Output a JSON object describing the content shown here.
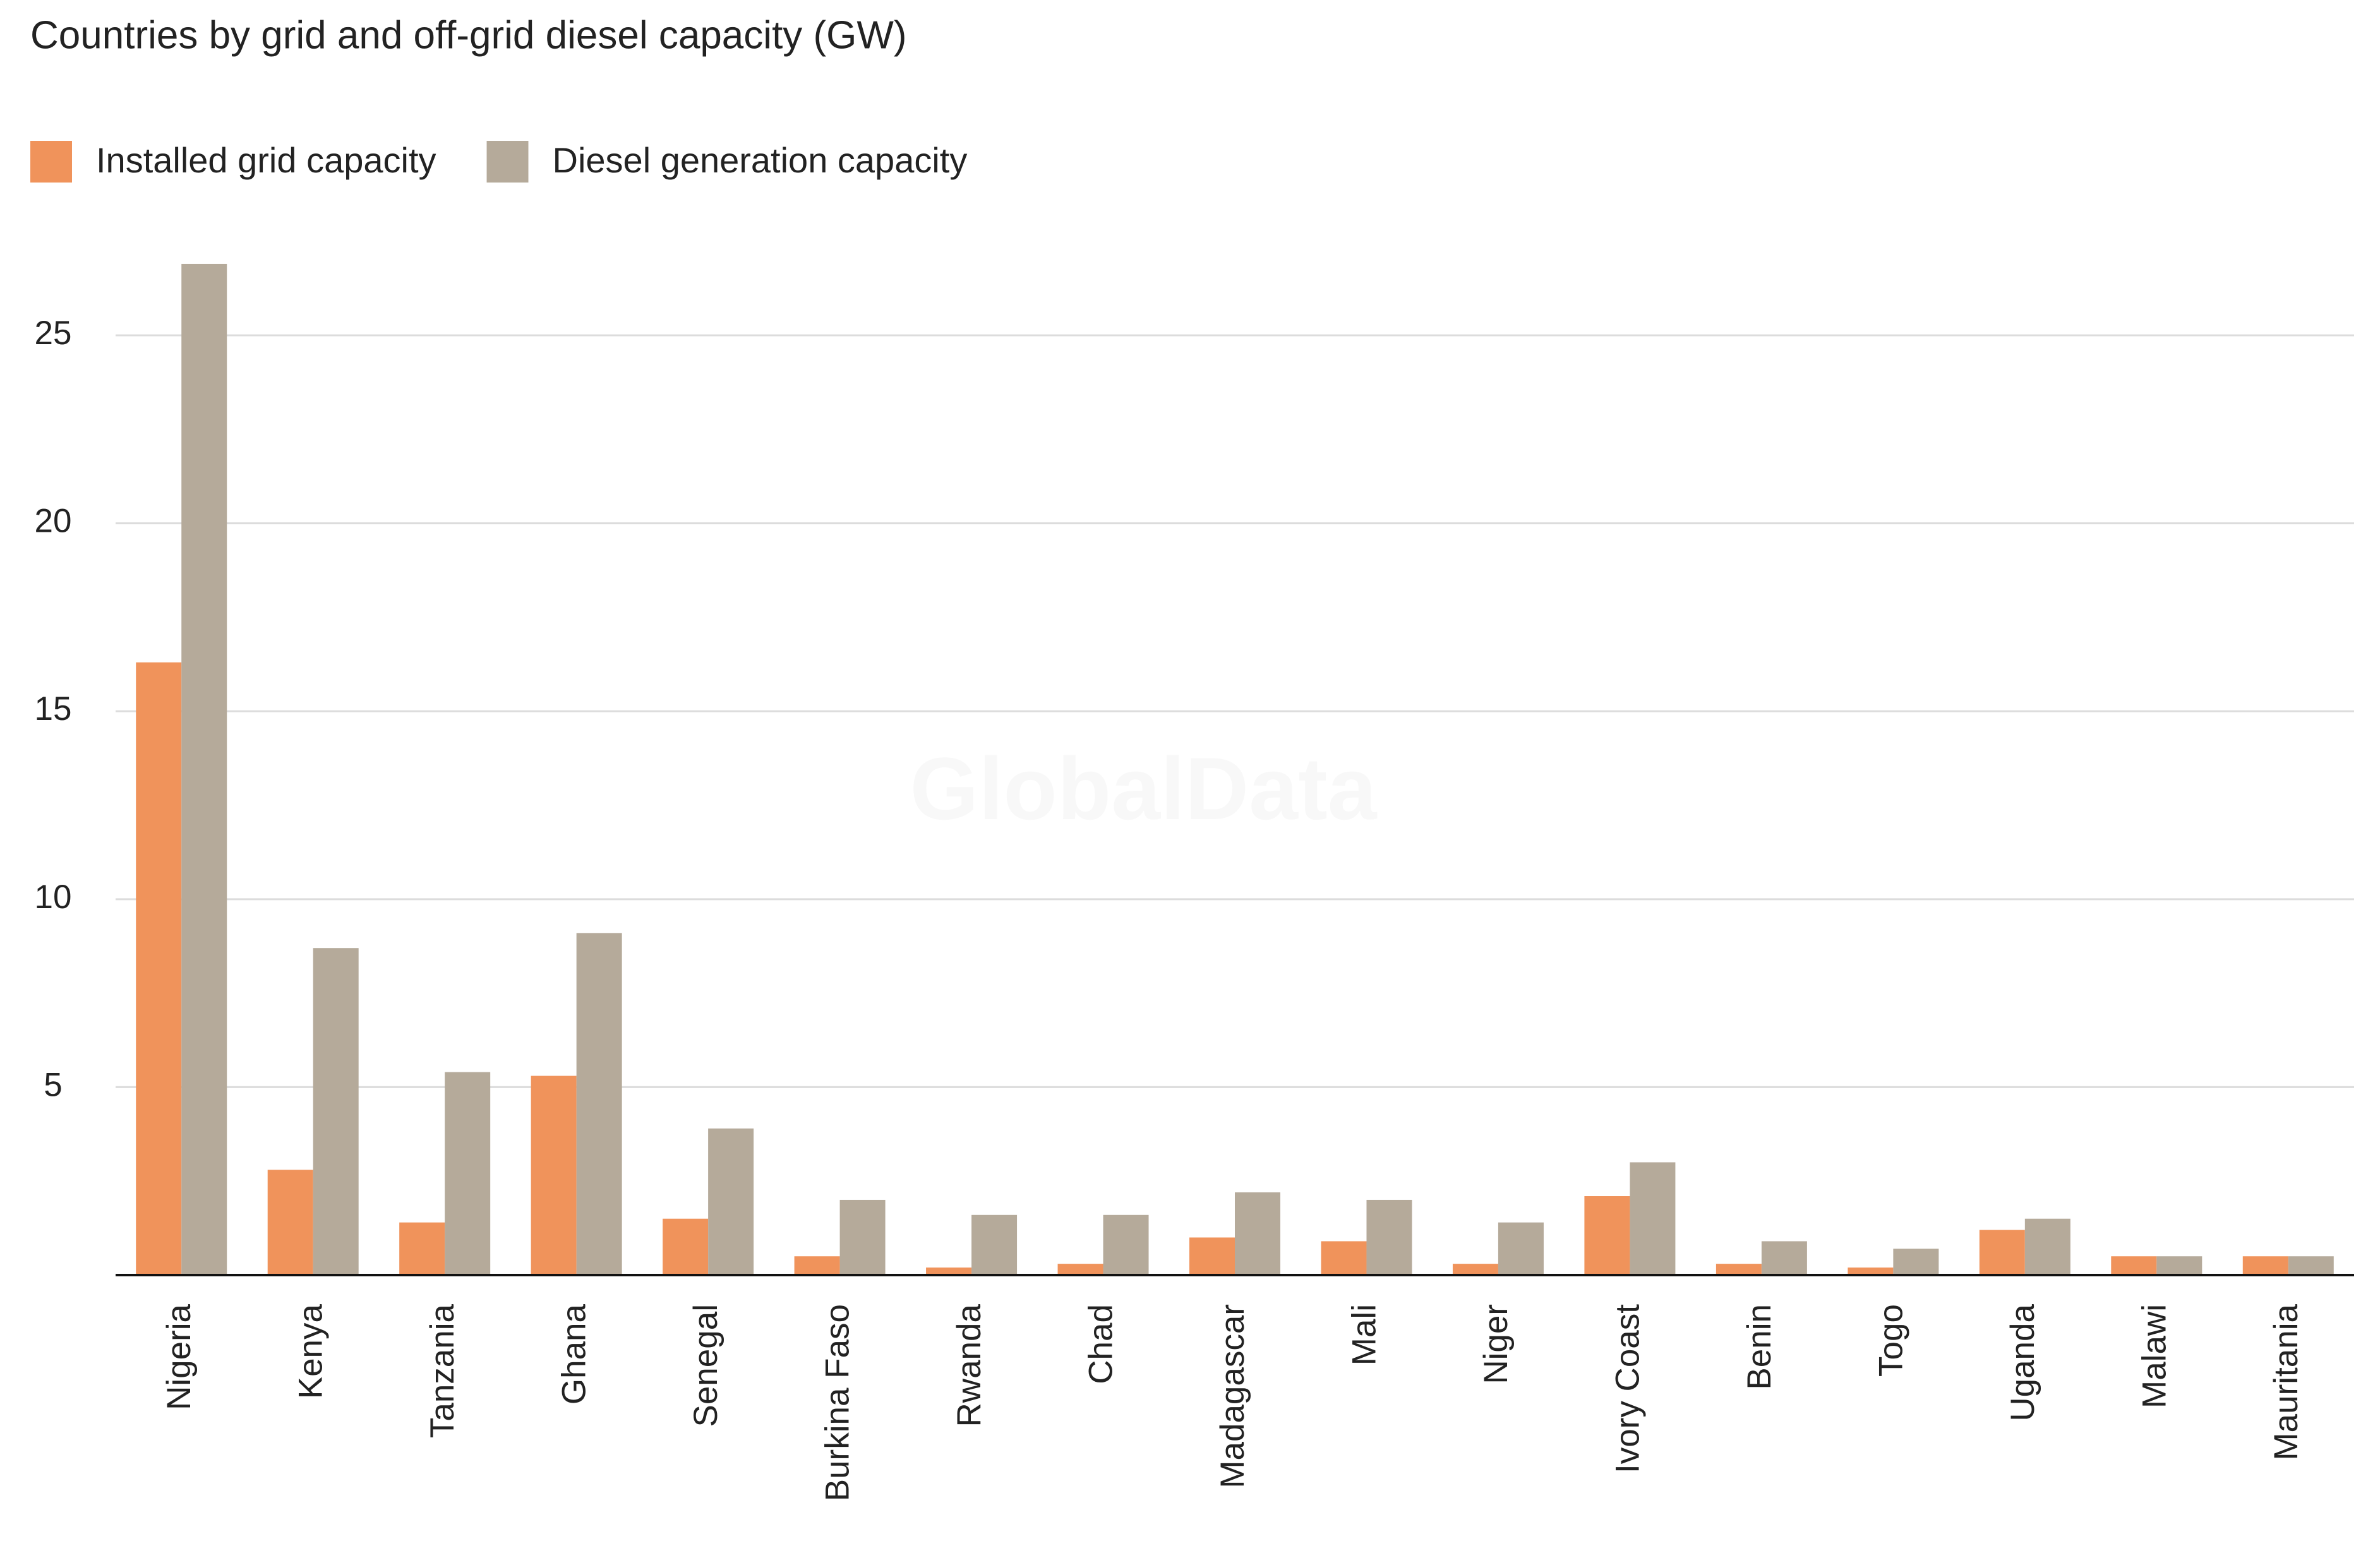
{
  "chart_data": {
    "type": "bar",
    "title": "Countries by grid and off-grid diesel capacity (GW)",
    "watermark": "GlobalData",
    "categories": [
      "Nigeria",
      "Kenya",
      "Tanzania",
      "Ghana",
      "Senegal",
      "Burkina Faso",
      "Rwanda",
      "Chad",
      "Madagascar",
      "Mali",
      "Niger",
      "Ivory Coast",
      "Benin",
      "Togo",
      "Uganda",
      "Malawi",
      "Mauritania"
    ],
    "series": [
      {
        "name": "Installed grid capacity",
        "color": "#f0935b",
        "values": [
          16.3,
          2.8,
          1.4,
          5.3,
          1.5,
          0.5,
          0.2,
          0.3,
          1.0,
          0.9,
          0.3,
          2.1,
          0.3,
          0.2,
          1.2,
          0.5,
          0.5
        ]
      },
      {
        "name": "Diesel generation capacity",
        "color": "#b5aa9a",
        "values": [
          26.9,
          8.7,
          5.4,
          9.1,
          3.9,
          2.0,
          1.6,
          1.6,
          2.2,
          2.0,
          1.4,
          3.0,
          0.9,
          0.7,
          1.5,
          0.5,
          0.5
        ]
      }
    ],
    "ylim": [
      0,
      27
    ],
    "yticks": [
      5,
      10,
      15,
      20,
      25
    ],
    "grid": true,
    "legend": "top-left"
  }
}
